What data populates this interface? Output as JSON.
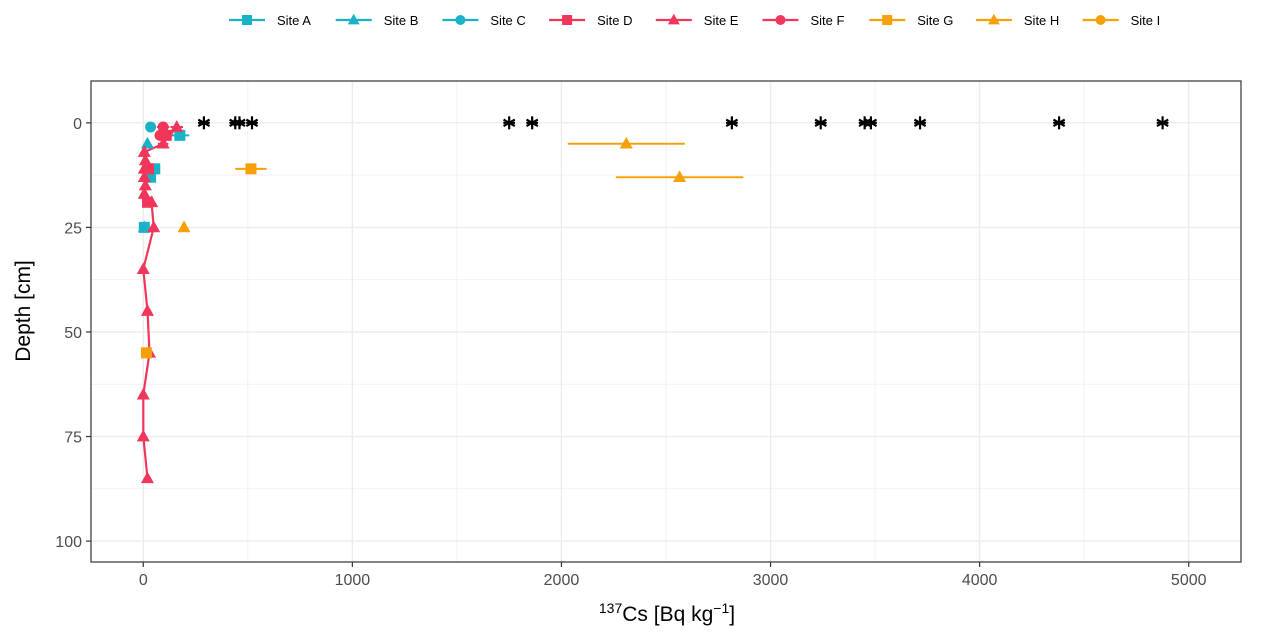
{
  "chart_data": {
    "type": "scatter",
    "xlabel": {
      "sup": "137",
      "base": "Cs [Bq kg",
      "sup2": "−1",
      "end": "]"
    },
    "ylabel": "Depth [cm]",
    "xlim": [
      -250,
      5250
    ],
    "ylim": [
      105,
      -10
    ],
    "y_reversed": true,
    "grid": true,
    "legend_position": "top",
    "x_ticks": [
      0,
      1000,
      2000,
      3000,
      4000,
      5000
    ],
    "x_tick_labels": [
      "0",
      "1000",
      "2000",
      "3000",
      "4000",
      "5000"
    ],
    "y_ticks": [
      0,
      25,
      50,
      75,
      100
    ],
    "y_tick_labels": [
      "0",
      "25",
      "50",
      "75",
      "100"
    ],
    "series": [
      {
        "name": "Site A",
        "color": "#1ab2c9",
        "marker": "square",
        "points": [
          {
            "x": 175,
            "y": 3,
            "xerr": 45
          },
          {
            "x": 55,
            "y": 11,
            "xerr": 25
          },
          {
            "x": 35,
            "y": 13
          },
          {
            "x": 5,
            "y": 25
          }
        ]
      },
      {
        "name": "Site B",
        "color": "#1ab2c9",
        "marker": "triangle",
        "points": [
          {
            "x": 20,
            "y": 5
          },
          {
            "x": 15,
            "y": 11
          },
          {
            "x": 5,
            "y": 25
          }
        ]
      },
      {
        "name": "Site C",
        "color": "#1ab2c9",
        "marker": "circle",
        "points": [
          {
            "x": 35,
            "y": 1
          }
        ]
      },
      {
        "name": "Site D",
        "color": "#f0365a",
        "marker": "square",
        "points": [
          {
            "x": 110,
            "y": 3,
            "xerr": 30
          },
          {
            "x": 25,
            "y": 11,
            "xerr": 20
          },
          {
            "x": 20,
            "y": 19
          }
        ]
      },
      {
        "name": "Site E",
        "color": "#f0365a",
        "marker": "triangle",
        "line": true,
        "points": [
          {
            "x": 160,
            "y": 1,
            "xerr": 30
          },
          {
            "x": 95,
            "y": 5,
            "xerr": 25
          },
          {
            "x": 5,
            "y": 7
          },
          {
            "x": 10,
            "y": 9
          },
          {
            "x": 5,
            "y": 11
          },
          {
            "x": 5,
            "y": 13
          },
          {
            "x": 10,
            "y": 15
          },
          {
            "x": 5,
            "y": 17
          },
          {
            "x": 40,
            "y": 19
          },
          {
            "x": 50,
            "y": 25
          },
          {
            "x": 0,
            "y": 35
          },
          {
            "x": 20,
            "y": 45
          },
          {
            "x": 30,
            "y": 55
          },
          {
            "x": 0,
            "y": 65
          },
          {
            "x": 0,
            "y": 75
          },
          {
            "x": 20,
            "y": 85
          }
        ]
      },
      {
        "name": "Site F",
        "color": "#f0365a",
        "marker": "circle",
        "points": [
          {
            "x": 95,
            "y": 1,
            "xerr": 30
          },
          {
            "x": 80,
            "y": 3
          }
        ]
      },
      {
        "name": "Site G",
        "color": "#f7a10a",
        "marker": "square",
        "points": [
          {
            "x": 515,
            "y": 11,
            "xerr": 75
          },
          {
            "x": 15,
            "y": 55
          }
        ]
      },
      {
        "name": "Site H",
        "color": "#f7a10a",
        "marker": "triangle",
        "points": [
          {
            "x": 2310,
            "y": 5,
            "xerr": 280
          },
          {
            "x": 2565,
            "y": 13,
            "xerr": 305
          },
          {
            "x": 195,
            "y": 25
          }
        ]
      },
      {
        "name": "Site I",
        "color": "#f7a10a",
        "marker": "circle",
        "points": []
      }
    ],
    "asterisks": {
      "color": "#000000",
      "y": 0,
      "x": [
        290,
        440,
        460,
        520,
        1750,
        1860,
        2815,
        3240,
        3450,
        3480,
        3715,
        4380,
        4875
      ]
    }
  }
}
